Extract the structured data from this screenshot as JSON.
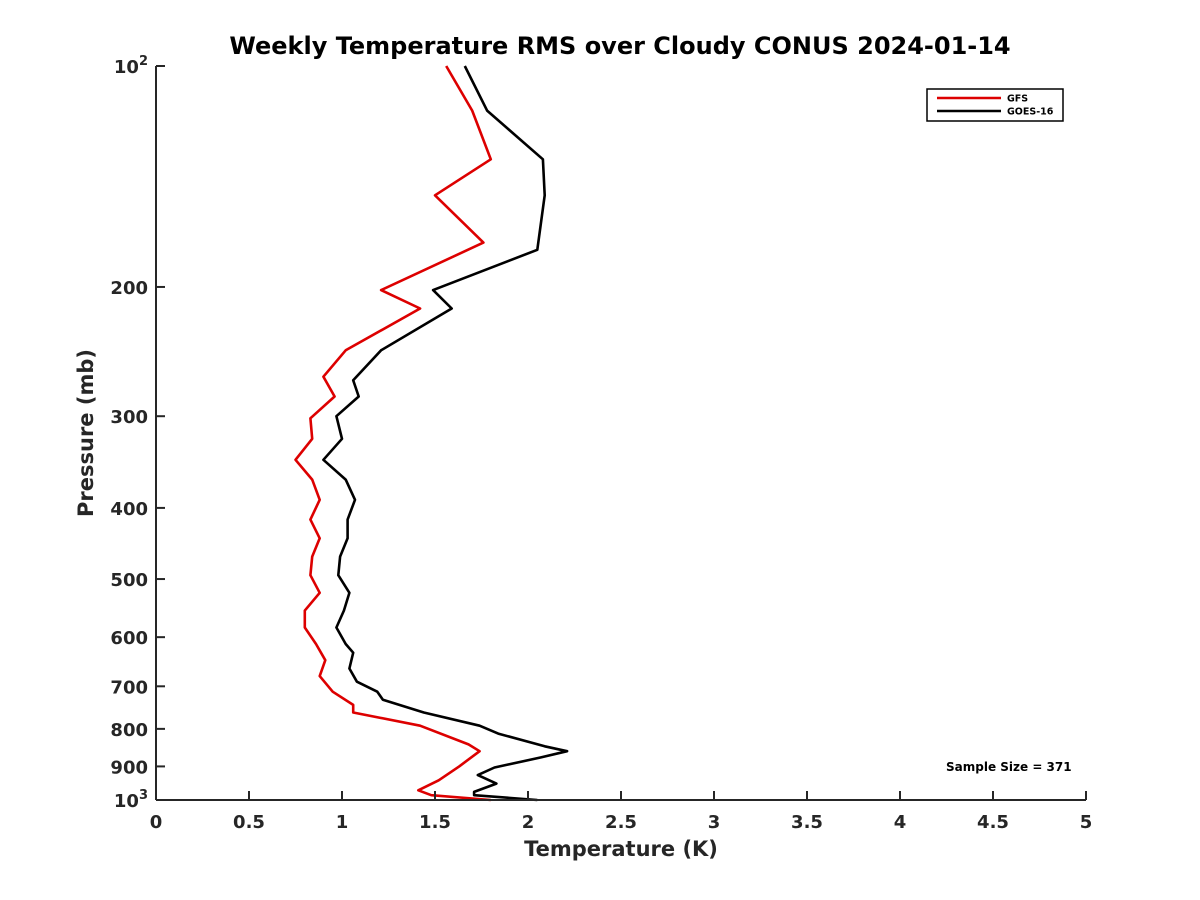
{
  "chart_data": {
    "type": "line",
    "title": "Weekly Temperature RMS over Cloudy CONUS 2024-01-14",
    "xlabel": "Temperature (K)",
    "ylabel": "Pressure (mb)",
    "xlim": [
      0,
      5
    ],
    "ylim": [
      100,
      1000
    ],
    "y_scale": "log",
    "y_reversed": true,
    "grid": false,
    "legend_position": "top-right",
    "x_ticks": [
      {
        "value": 0,
        "label": "0"
      },
      {
        "value": 0.5,
        "label": "0.5"
      },
      {
        "value": 1,
        "label": "1"
      },
      {
        "value": 1.5,
        "label": "1.5"
      },
      {
        "value": 2,
        "label": "2"
      },
      {
        "value": 2.5,
        "label": "2.5"
      },
      {
        "value": 3,
        "label": "3"
      },
      {
        "value": 3.5,
        "label": "3.5"
      },
      {
        "value": 4,
        "label": "4"
      },
      {
        "value": 4.5,
        "label": "4.5"
      },
      {
        "value": 5,
        "label": "5"
      }
    ],
    "y_ticks": [
      {
        "value": 100,
        "label": "10",
        "exp": "2"
      },
      {
        "value": 200,
        "label": "200",
        "exp": ""
      },
      {
        "value": 300,
        "label": "300",
        "exp": ""
      },
      {
        "value": 400,
        "label": "400",
        "exp": ""
      },
      {
        "value": 500,
        "label": "500",
        "exp": ""
      },
      {
        "value": 600,
        "label": "600",
        "exp": ""
      },
      {
        "value": 700,
        "label": "700",
        "exp": ""
      },
      {
        "value": 800,
        "label": "800",
        "exp": ""
      },
      {
        "value": 900,
        "label": "900",
        "exp": ""
      },
      {
        "value": 1000,
        "label": "10",
        "exp": "3"
      }
    ],
    "annotation": "Sample Size = 371",
    "series": [
      {
        "name": "GFS",
        "color": "#dd0000",
        "points": [
          {
            "x": 1.56,
            "y": 100
          },
          {
            "x": 1.7,
            "y": 115
          },
          {
            "x": 1.8,
            "y": 134
          },
          {
            "x": 1.5,
            "y": 150
          },
          {
            "x": 1.76,
            "y": 174
          },
          {
            "x": 1.21,
            "y": 202
          },
          {
            "x": 1.42,
            "y": 214
          },
          {
            "x": 1.02,
            "y": 244
          },
          {
            "x": 0.9,
            "y": 265
          },
          {
            "x": 0.96,
            "y": 282
          },
          {
            "x": 0.83,
            "y": 302
          },
          {
            "x": 0.84,
            "y": 322
          },
          {
            "x": 0.75,
            "y": 344
          },
          {
            "x": 0.84,
            "y": 366
          },
          {
            "x": 0.88,
            "y": 390
          },
          {
            "x": 0.83,
            "y": 415
          },
          {
            "x": 0.88,
            "y": 440
          },
          {
            "x": 0.84,
            "y": 466
          },
          {
            "x": 0.83,
            "y": 494
          },
          {
            "x": 0.88,
            "y": 522
          },
          {
            "x": 0.8,
            "y": 552
          },
          {
            "x": 0.8,
            "y": 582
          },
          {
            "x": 0.86,
            "y": 613
          },
          {
            "x": 0.91,
            "y": 645
          },
          {
            "x": 0.88,
            "y": 678
          },
          {
            "x": 0.95,
            "y": 712
          },
          {
            "x": 1.06,
            "y": 742
          },
          {
            "x": 1.06,
            "y": 760
          },
          {
            "x": 1.42,
            "y": 792
          },
          {
            "x": 1.68,
            "y": 840
          },
          {
            "x": 1.74,
            "y": 858
          },
          {
            "x": 1.63,
            "y": 900
          },
          {
            "x": 1.52,
            "y": 940
          },
          {
            "x": 1.41,
            "y": 970
          },
          {
            "x": 1.48,
            "y": 985
          },
          {
            "x": 1.8,
            "y": 1000
          }
        ]
      },
      {
        "name": "GOES-16",
        "color": "#000000",
        "points": [
          {
            "x": 1.66,
            "y": 100
          },
          {
            "x": 1.78,
            "y": 115
          },
          {
            "x": 2.08,
            "y": 134
          },
          {
            "x": 2.09,
            "y": 150
          },
          {
            "x": 2.05,
            "y": 178
          },
          {
            "x": 1.49,
            "y": 202
          },
          {
            "x": 1.59,
            "y": 214
          },
          {
            "x": 1.21,
            "y": 244
          },
          {
            "x": 1.06,
            "y": 268
          },
          {
            "x": 1.09,
            "y": 282
          },
          {
            "x": 0.97,
            "y": 300
          },
          {
            "x": 1.0,
            "y": 322
          },
          {
            "x": 0.9,
            "y": 344
          },
          {
            "x": 1.02,
            "y": 366
          },
          {
            "x": 1.07,
            "y": 390
          },
          {
            "x": 1.03,
            "y": 415
          },
          {
            "x": 1.03,
            "y": 440
          },
          {
            "x": 0.99,
            "y": 466
          },
          {
            "x": 0.98,
            "y": 494
          },
          {
            "x": 1.04,
            "y": 522
          },
          {
            "x": 1.01,
            "y": 552
          },
          {
            "x": 0.97,
            "y": 582
          },
          {
            "x": 1.02,
            "y": 613
          },
          {
            "x": 1.06,
            "y": 630
          },
          {
            "x": 1.04,
            "y": 662
          },
          {
            "x": 1.08,
            "y": 690
          },
          {
            "x": 1.19,
            "y": 712
          },
          {
            "x": 1.22,
            "y": 730
          },
          {
            "x": 1.44,
            "y": 760
          },
          {
            "x": 1.74,
            "y": 792
          },
          {
            "x": 1.84,
            "y": 812
          },
          {
            "x": 2.09,
            "y": 845
          },
          {
            "x": 2.21,
            "y": 858
          },
          {
            "x": 2.07,
            "y": 875
          },
          {
            "x": 1.82,
            "y": 903
          },
          {
            "x": 1.73,
            "y": 925
          },
          {
            "x": 1.83,
            "y": 950
          },
          {
            "x": 1.71,
            "y": 975
          },
          {
            "x": 1.71,
            "y": 985
          },
          {
            "x": 2.05,
            "y": 1000
          }
        ]
      }
    ]
  }
}
